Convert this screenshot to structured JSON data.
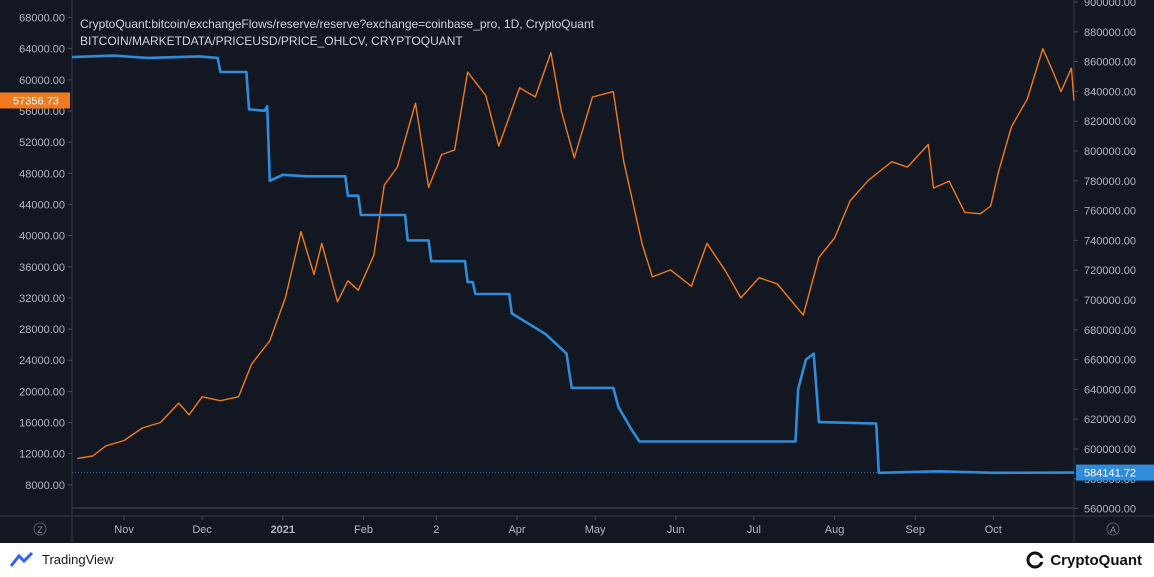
{
  "chart_data": {
    "type": "line",
    "title": "CryptoQuant:bitcoin/exchangeFlows/reserve/reserve?exchange=coinbase_pro, 1D, CryptoQuant",
    "subtitle": "BITCOIN/MARKETDATA/PRICEUSD/PRICE_OHLCV, CRYPTOQUANT",
    "x_ticks": [
      "Nov",
      "Dec",
      "2021",
      "Feb",
      "2",
      "Apr",
      "May",
      "Jun",
      "Jul",
      "Aug",
      "Sep",
      "Oct"
    ],
    "x_range": [
      "2020-10-12",
      "2021-11-01"
    ],
    "left_axis": {
      "ticks": [
        "8000.00",
        "12000.00",
        "16000.00",
        "20000.00",
        "24000.00",
        "28000.00",
        "32000.00",
        "36000.00",
        "40000.00",
        "44000.00",
        "48000.00",
        "52000.00",
        "56000.00",
        "60000.00",
        "64000.00",
        "68000.00"
      ],
      "range": [
        4000,
        70000
      ],
      "last_value_label": "57356.73"
    },
    "right_axis": {
      "ticks": [
        "560000.00",
        "580000.00",
        "600000.00",
        "620000.00",
        "640000.00",
        "660000.00",
        "680000.00",
        "700000.00",
        "720000.00",
        "740000.00",
        "760000.00",
        "780000.00",
        "800000.00",
        "820000.00",
        "840000.00",
        "860000.00",
        "880000.00",
        "900000.00"
      ],
      "range": [
        555000,
        900000
      ],
      "last_value_label": "584141.72"
    },
    "series": [
      {
        "axis": "left",
        "color": "#f07a1f",
        "points": [
          [
            "2020-10-14",
            11400
          ],
          [
            "2020-10-20",
            11700
          ],
          [
            "2020-10-25",
            13000
          ],
          [
            "2020-11-01",
            13700
          ],
          [
            "2020-11-08",
            15300
          ],
          [
            "2020-11-15",
            16000
          ],
          [
            "2020-11-22",
            18500
          ],
          [
            "2020-11-26",
            17000
          ],
          [
            "2020-12-01",
            19300
          ],
          [
            "2020-12-08",
            18800
          ],
          [
            "2020-12-15",
            19300
          ],
          [
            "2020-12-20",
            23500
          ],
          [
            "2020-12-27",
            26500
          ],
          [
            "2021-01-02",
            32000
          ],
          [
            "2021-01-08",
            40500
          ],
          [
            "2021-01-13",
            35000
          ],
          [
            "2021-01-16",
            39000
          ],
          [
            "2021-01-22",
            31500
          ],
          [
            "2021-01-26",
            34200
          ],
          [
            "2021-01-30",
            33000
          ],
          [
            "2021-02-05",
            37500
          ],
          [
            "2021-02-09",
            46500
          ],
          [
            "2021-02-14",
            48800
          ],
          [
            "2021-02-21",
            57000
          ],
          [
            "2021-02-26",
            46200
          ],
          [
            "2021-03-03",
            50400
          ],
          [
            "2021-03-08",
            51000
          ],
          [
            "2021-03-13",
            61000
          ],
          [
            "2021-03-20",
            58000
          ],
          [
            "2021-03-25",
            51500
          ],
          [
            "2021-04-02",
            59000
          ],
          [
            "2021-04-08",
            57800
          ],
          [
            "2021-04-14",
            63500
          ],
          [
            "2021-04-18",
            56000
          ],
          [
            "2021-04-23",
            50000
          ],
          [
            "2021-04-30",
            57800
          ],
          [
            "2021-05-08",
            58500
          ],
          [
            "2021-05-12",
            49500
          ],
          [
            "2021-05-19",
            39000
          ],
          [
            "2021-05-23",
            34700
          ],
          [
            "2021-05-30",
            35600
          ],
          [
            "2021-06-07",
            33500
          ],
          [
            "2021-06-13",
            39000
          ],
          [
            "2021-06-20",
            35500
          ],
          [
            "2021-06-26",
            32000
          ],
          [
            "2021-07-03",
            34600
          ],
          [
            "2021-07-10",
            33800
          ],
          [
            "2021-07-15",
            31800
          ],
          [
            "2021-07-20",
            29800
          ],
          [
            "2021-07-26",
            37200
          ],
          [
            "2021-08-01",
            39700
          ],
          [
            "2021-08-07",
            44500
          ],
          [
            "2021-08-14",
            47100
          ],
          [
            "2021-08-23",
            49500
          ],
          [
            "2021-08-29",
            48800
          ],
          [
            "2021-09-06",
            51700
          ],
          [
            "2021-09-08",
            46100
          ],
          [
            "2021-09-14",
            47000
          ],
          [
            "2021-09-20",
            43000
          ],
          [
            "2021-09-26",
            42800
          ],
          [
            "2021-09-30",
            43800
          ],
          [
            "2021-10-03",
            48200
          ],
          [
            "2021-10-08",
            54000
          ],
          [
            "2021-10-14",
            57500
          ],
          [
            "2021-10-20",
            64000
          ],
          [
            "2021-10-24",
            61000
          ],
          [
            "2021-10-27",
            58500
          ],
          [
            "2021-10-31",
            61500
          ],
          [
            "2021-11-01",
            57356.73
          ]
        ]
      },
      {
        "axis": "right",
        "color": "#2f8cda",
        "points": [
          [
            "2020-10-12",
            863000
          ],
          [
            "2020-10-28",
            864000
          ],
          [
            "2020-11-10",
            862500
          ],
          [
            "2020-11-30",
            863500
          ],
          [
            "2020-12-07",
            862500
          ],
          [
            "2020-12-08",
            853000
          ],
          [
            "2020-12-18",
            853000
          ],
          [
            "2020-12-19",
            828000
          ],
          [
            "2020-12-25",
            827000
          ],
          [
            "2020-12-26",
            830000
          ],
          [
            "2020-12-27",
            780000
          ],
          [
            "2021-01-01",
            784000
          ],
          [
            "2021-01-10",
            783000
          ],
          [
            "2021-01-25",
            783000
          ],
          [
            "2021-01-26",
            770000
          ],
          [
            "2021-01-30",
            770000
          ],
          [
            "2021-01-31",
            757000
          ],
          [
            "2021-02-17",
            757000
          ],
          [
            "2021-02-18",
            740000
          ],
          [
            "2021-02-26",
            740000
          ],
          [
            "2021-02-27",
            726000
          ],
          [
            "2021-03-12",
            726000
          ],
          [
            "2021-03-13",
            712000
          ],
          [
            "2021-03-15",
            712000
          ],
          [
            "2021-03-16",
            704000
          ],
          [
            "2021-03-29",
            704000
          ],
          [
            "2021-03-30",
            691000
          ],
          [
            "2021-04-12",
            677000
          ],
          [
            "2021-04-20",
            664000
          ],
          [
            "2021-04-22",
            641000
          ],
          [
            "2021-05-08",
            641000
          ],
          [
            "2021-05-10",
            628000
          ],
          [
            "2021-05-15",
            613000
          ],
          [
            "2021-05-18",
            605000
          ],
          [
            "2021-07-17",
            605000
          ],
          [
            "2021-07-18",
            640000
          ],
          [
            "2021-07-21",
            660000
          ],
          [
            "2021-07-24",
            664000
          ],
          [
            "2021-07-26",
            618000
          ],
          [
            "2021-08-17",
            617000
          ],
          [
            "2021-08-18",
            584000
          ],
          [
            "2021-09-10",
            585000
          ],
          [
            "2021-10-01",
            584000
          ],
          [
            "2021-11-01",
            584141.72
          ]
        ]
      }
    ],
    "grid": false,
    "background": "#131722",
    "axis_text_color": "#b2b5be"
  },
  "axis_bottom_left_glyph": "Z",
  "axis_bottom_right_glyph": "A",
  "footer": {
    "tradingview": "TradingView",
    "cryptoquant": "CryptoQuant"
  }
}
